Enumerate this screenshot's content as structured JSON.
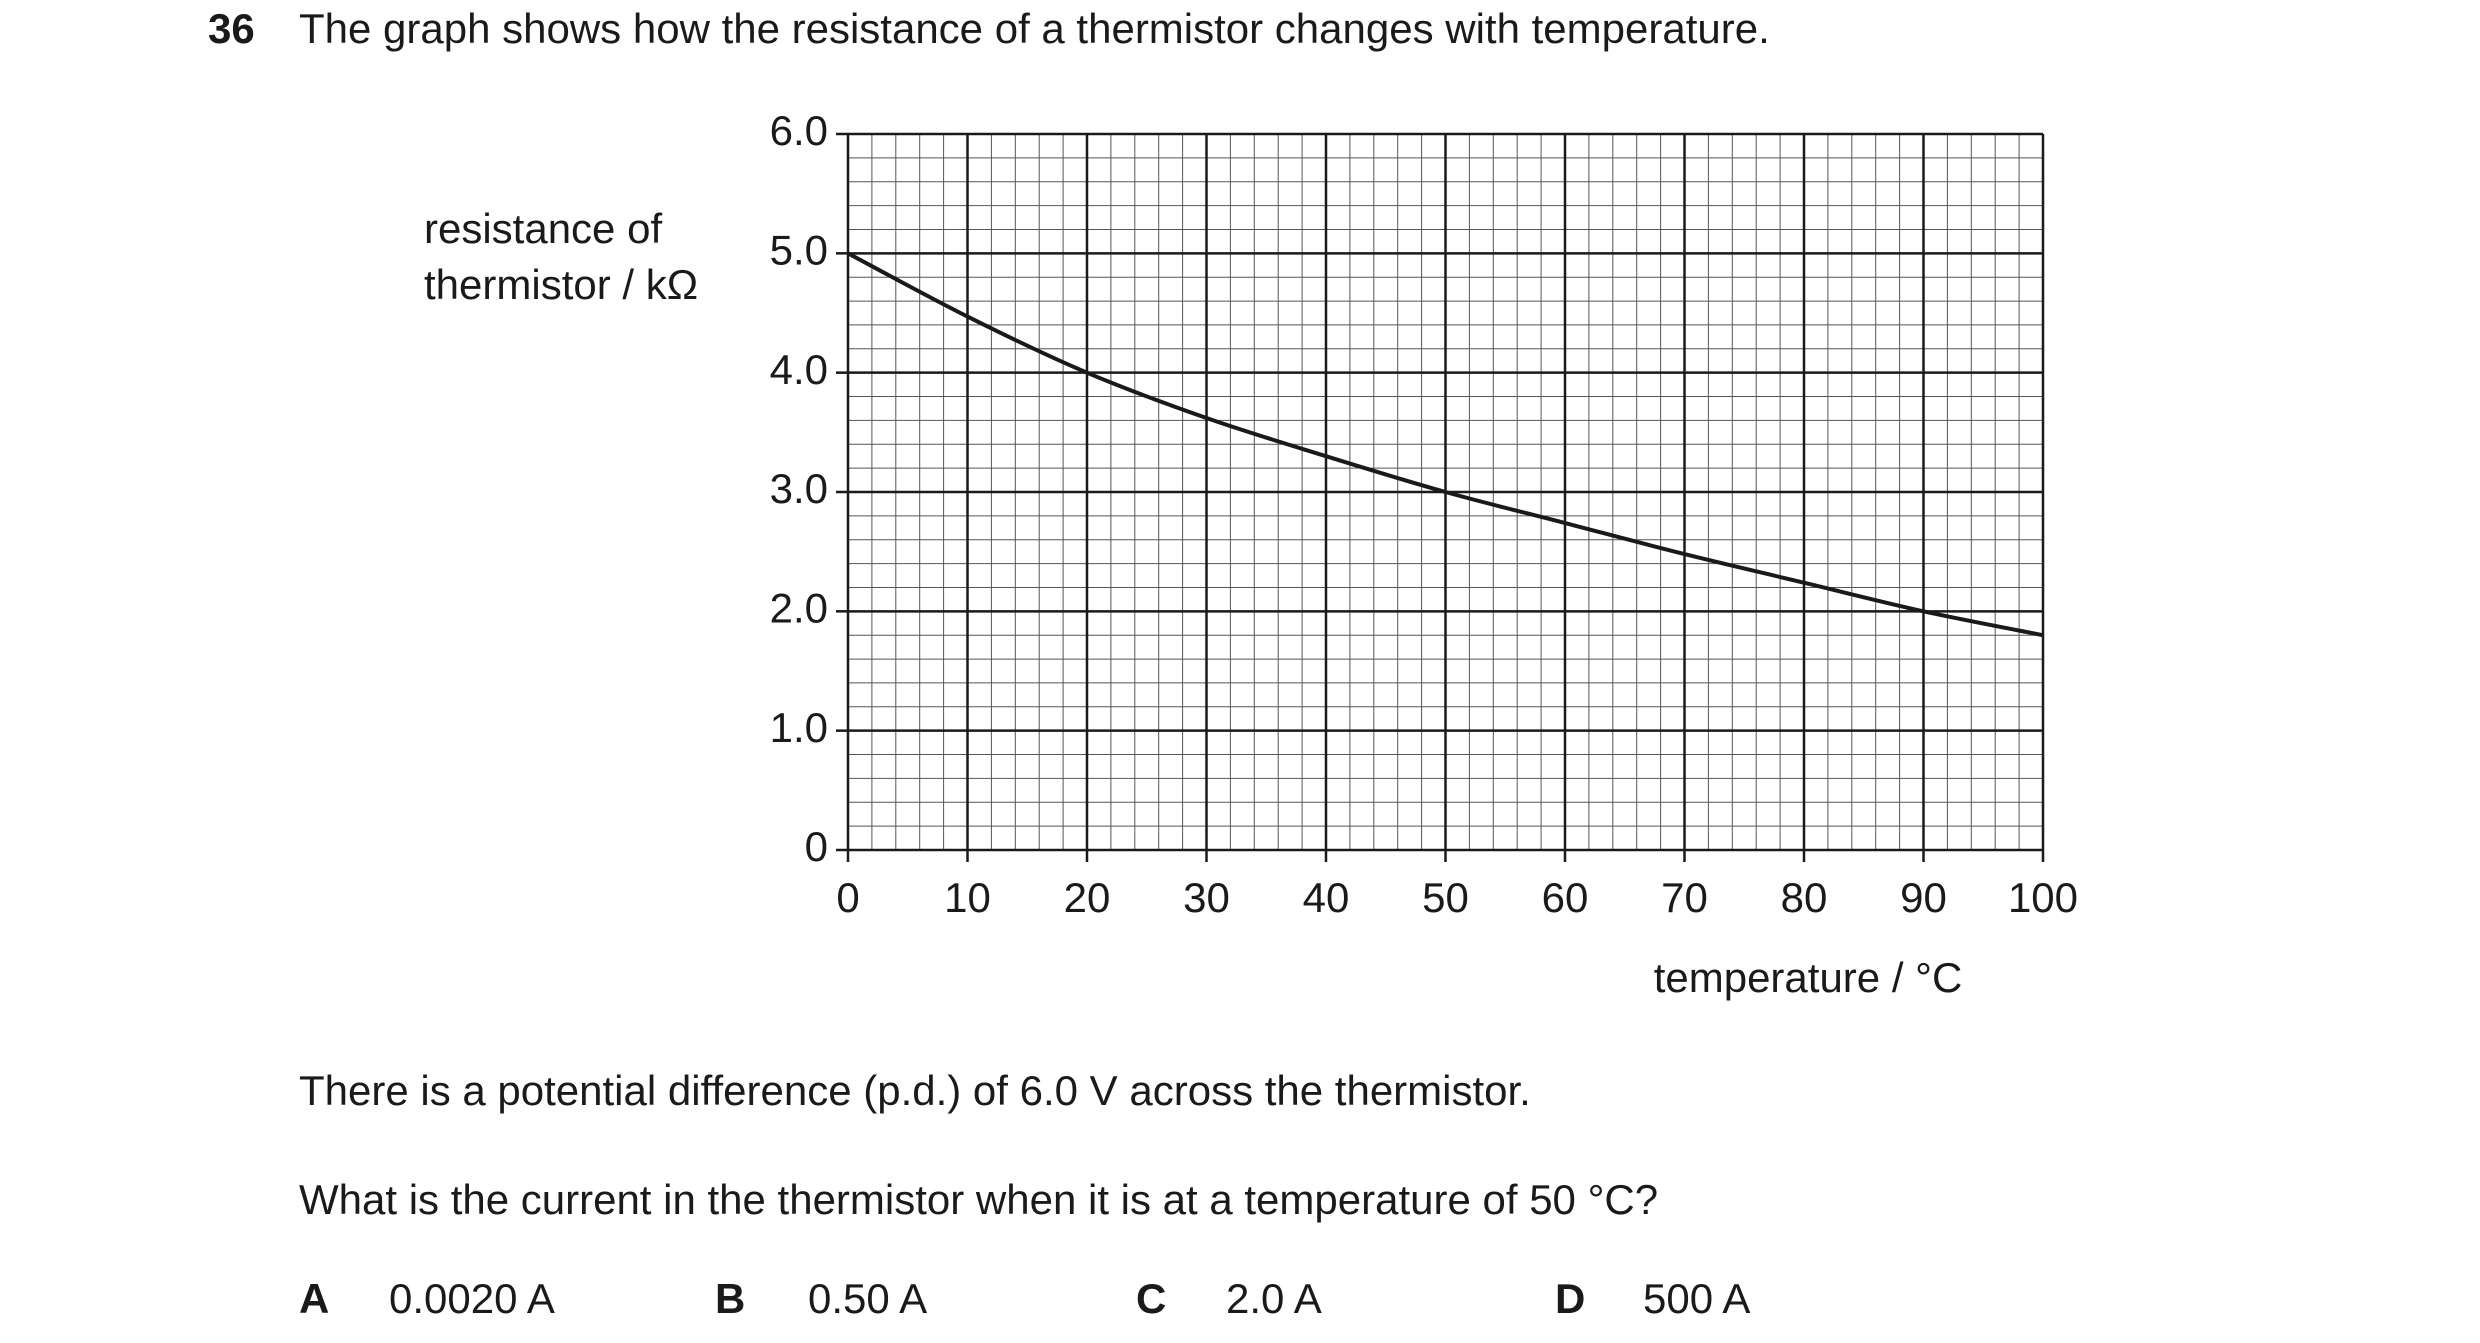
{
  "question": {
    "number": "36",
    "text": "The graph shows how the resistance of a thermistor changes with temperature."
  },
  "chart_data": {
    "type": "line",
    "x": [
      0,
      10,
      20,
      30,
      40,
      50,
      60,
      70,
      80,
      90,
      100
    ],
    "series": [
      {
        "color": "#1a1a1a",
        "values": [
          5.0,
          4.47,
          4.0,
          3.62,
          3.3,
          3.0,
          2.74,
          2.48,
          2.24,
          2.0,
          1.8
        ]
      }
    ],
    "xlim": [
      0,
      100
    ],
    "xticks": [
      0,
      10,
      20,
      30,
      40,
      50,
      60,
      70,
      80,
      90,
      100
    ],
    "ylim": [
      0,
      6
    ],
    "yticks": [
      0,
      {
        "value": 1,
        "label": "1.0"
      },
      {
        "value": 2,
        "label": "2.0"
      },
      {
        "value": 3,
        "label": "3.0"
      },
      {
        "value": 4,
        "label": "4.0"
      },
      {
        "value": 5,
        "label": "5.0"
      },
      {
        "value": 6,
        "label": "6.0"
      }
    ],
    "xlabel": "temperature / °C",
    "ylabel": [
      "resistance of",
      "thermistor / kΩ"
    ],
    "grid": true
  },
  "paragraphs": [
    "There is a potential difference (p.d.) of 6.0 V across the thermistor.",
    "What is the current in the thermistor when it is at a temperature of 50 °C?"
  ],
  "options": [
    {
      "letter": "A",
      "text": "0.0020 A"
    },
    {
      "letter": "B",
      "text": "0.50 A"
    },
    {
      "letter": "C",
      "text": "2.0 A"
    },
    {
      "letter": "D",
      "text": "500 A"
    }
  ]
}
